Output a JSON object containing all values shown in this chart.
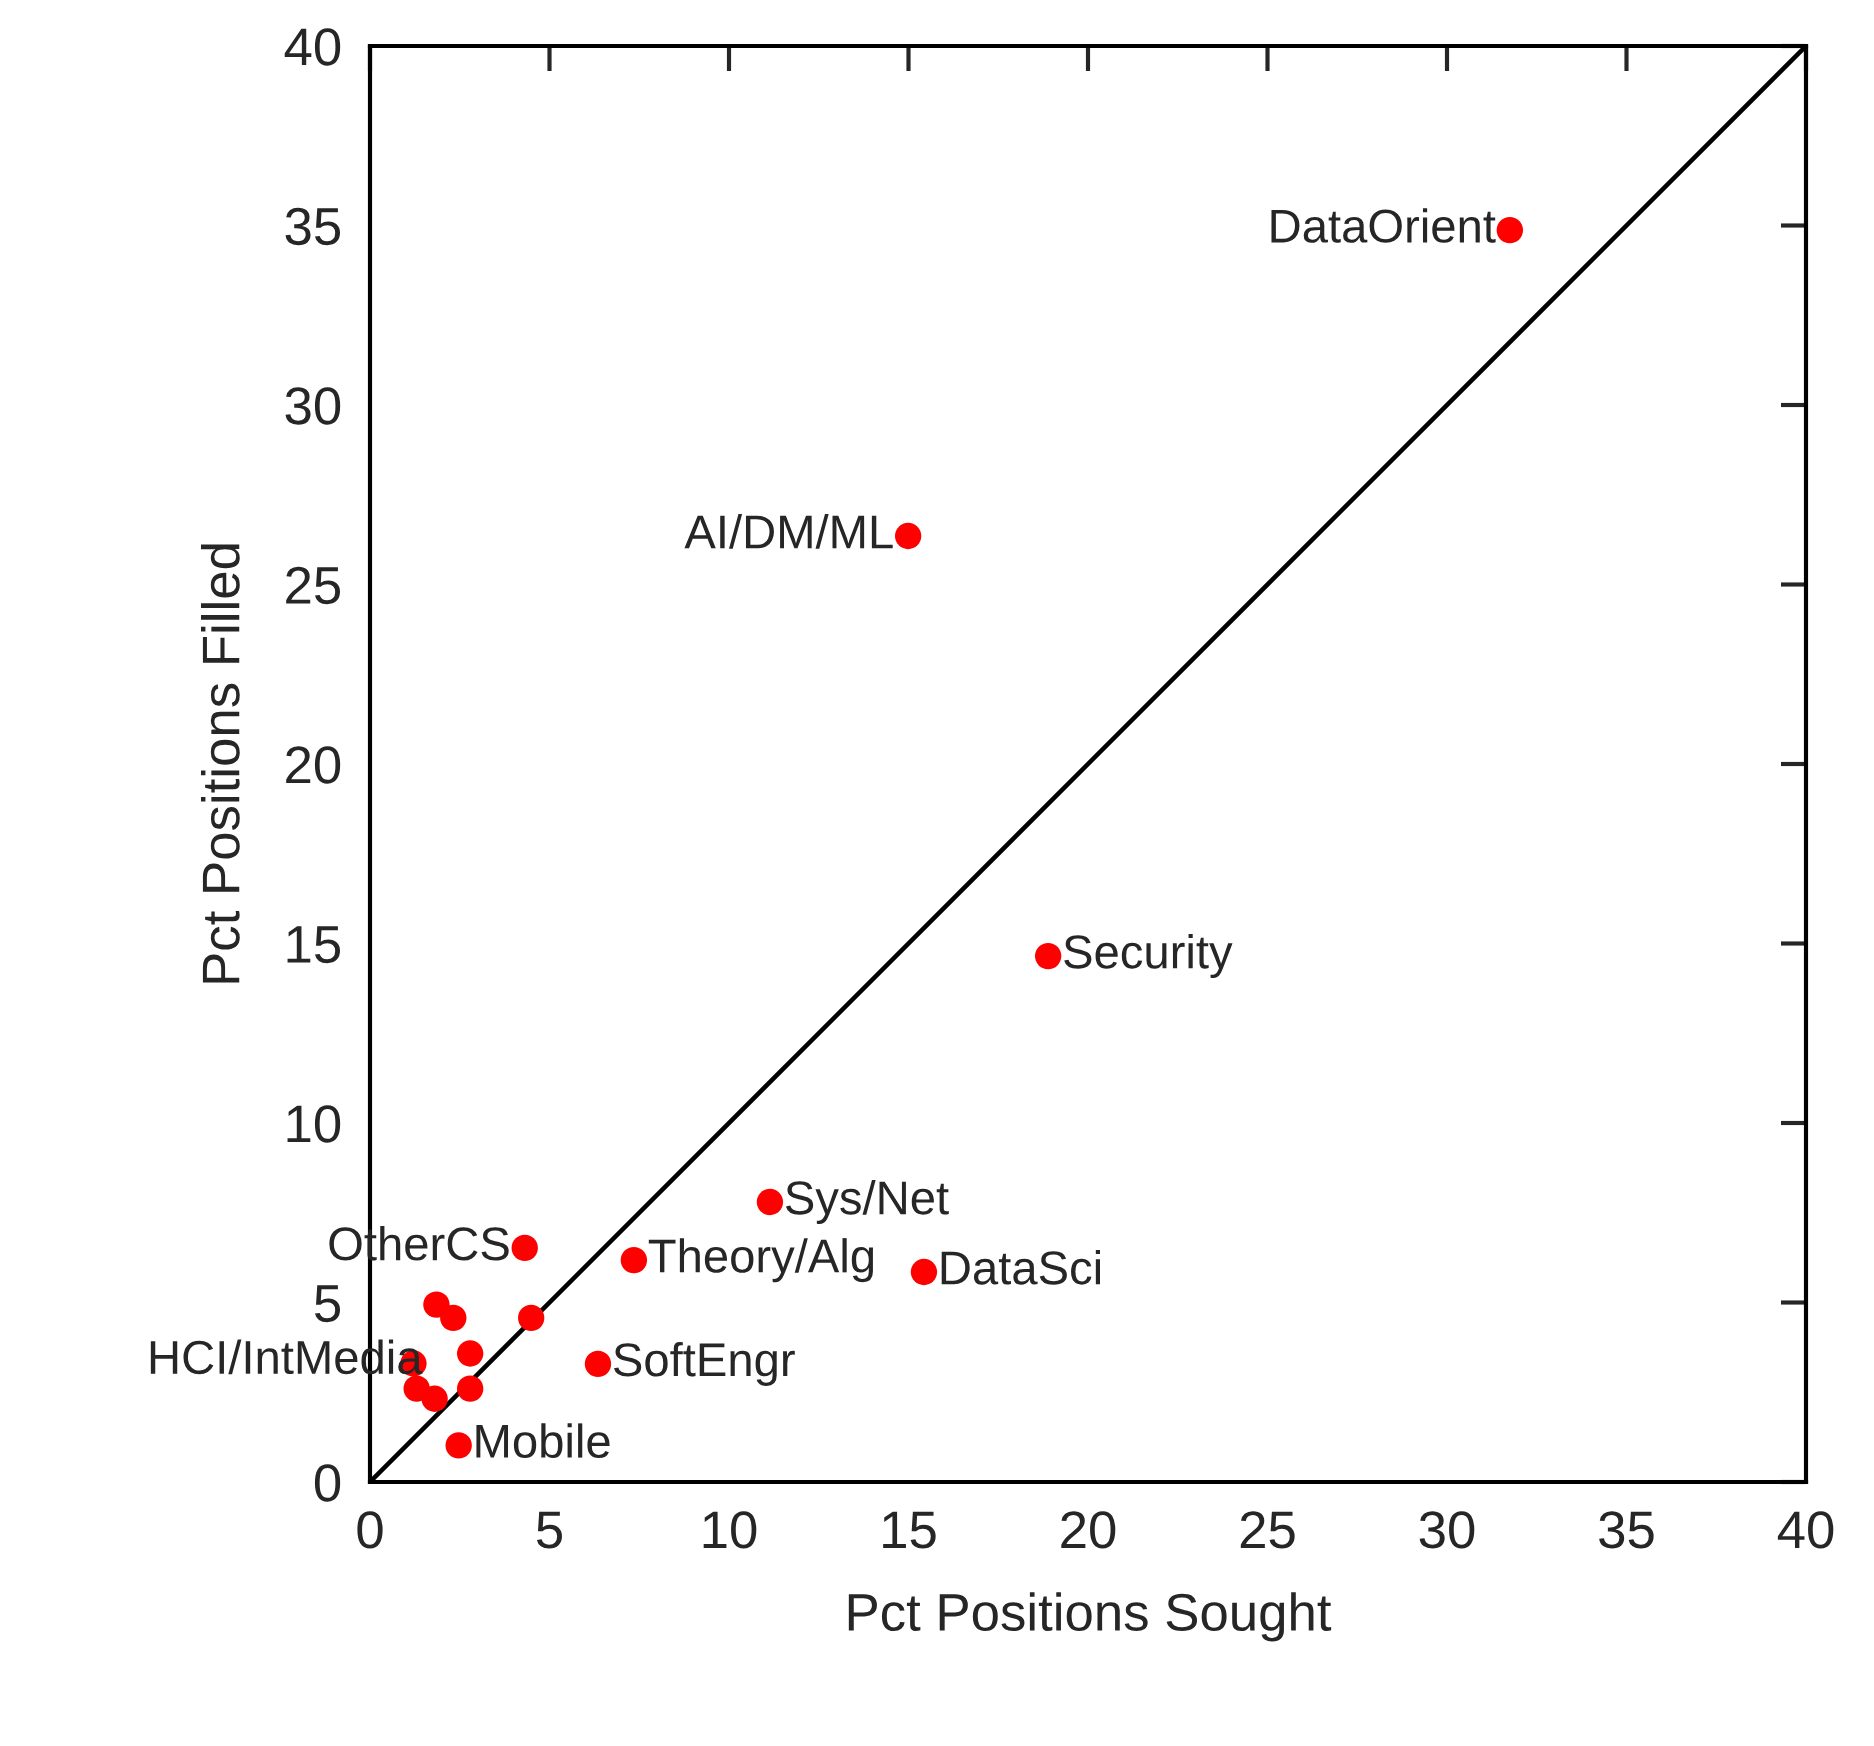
{
  "chart_data": {
    "type": "scatter",
    "xlabel": "Pct Positions Sought",
    "ylabel": "Pct Positions Filled",
    "xlim": [
      0,
      40
    ],
    "ylim": [
      0,
      40
    ],
    "xticks": [
      0,
      5,
      10,
      15,
      20,
      25,
      30,
      35,
      40
    ],
    "yticks": [
      0,
      5,
      10,
      15,
      20,
      25,
      30,
      35,
      40
    ],
    "grid": false,
    "legend": false,
    "series": [
      {
        "marker": "circle",
        "color": "#ff0000",
        "x": [
          31.75,
          14.99,
          18.89,
          11.14,
          7.35,
          15.43,
          6.35,
          2.47,
          4.31,
          1.85,
          2.32,
          4.49,
          2.79,
          1.21,
          1.3,
          2.79,
          1.8
        ],
        "values": [
          34.87,
          26.35,
          14.65,
          7.8,
          6.18,
          5.85,
          3.29,
          1.02,
          6.52,
          4.94,
          4.57,
          4.57,
          3.58,
          3.3,
          2.6,
          2.6,
          2.32
        ]
      },
      {
        "type": "line",
        "color": "#000000",
        "x": [
          0,
          40
        ],
        "values": [
          0,
          40
        ],
        "line_style": "solid"
      }
    ],
    "annotations": [
      {
        "text": "DataOrient",
        "x": 31.75,
        "y": 34.87
      },
      {
        "text": "AI/DM/ML",
        "x": 14.99,
        "y": 26.35
      },
      {
        "text": "Security",
        "x": 18.89,
        "y": 14.65
      },
      {
        "text": "Sys/Net",
        "x": 11.14,
        "y": 7.8
      },
      {
        "text": "Theory/Alg",
        "x": 7.35,
        "y": 6.18
      },
      {
        "text": "DataSci",
        "x": 15.43,
        "y": 5.85
      },
      {
        "text": "SoftEngr",
        "x": 6.35,
        "y": 3.29
      },
      {
        "text": "Mobile",
        "x": 2.47,
        "y": 1.02
      },
      {
        "text": "OtherCS",
        "x": 4.31,
        "y": 6.52
      },
      {
        "text": "HCI/IntMedia",
        "x": 1.85,
        "y": 4.94
      }
    ]
  }
}
